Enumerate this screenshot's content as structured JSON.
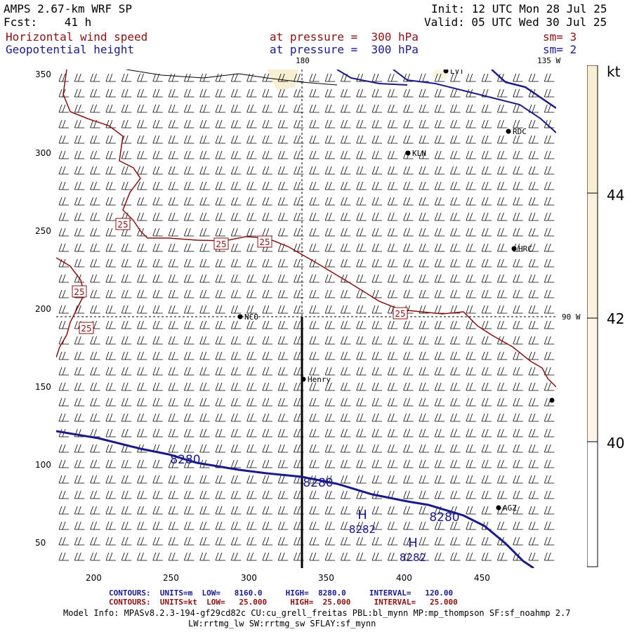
{
  "header": {
    "model": "AMPS 2.67-km WRF SP",
    "forecast": "Fcst:    41 h",
    "init": "Init: 12 UTC Mon 28 Jul 25",
    "valid": "Valid: 05 UTC Wed 30 Jul 25",
    "field1": "Horizontal wind speed",
    "field2": "Geopotential height",
    "level1": "at pressure =  300 hPa",
    "level2": "at pressure =  300 hPa",
    "sm1": "sm= 3",
    "sm2": "sm= 2"
  },
  "map": {
    "meridian_180": "180",
    "meridian_135w": "135 W",
    "parallel_90w": "90 W",
    "x_ticks": [
      "200",
      "250",
      "300",
      "350",
      "400",
      "450"
    ],
    "y_ticks": [
      "350",
      "300",
      "250",
      "200",
      "150",
      "100",
      "50"
    ],
    "stations": [
      "LVT",
      "RDC",
      "KLN",
      "HRC",
      "NCO",
      "Henry",
      "AGZ"
    ],
    "wind_labels": [
      "25",
      "25",
      "25",
      "25",
      "25",
      "25"
    ],
    "height_labels": [
      "8280",
      "8280",
      "8280"
    ],
    "highs": [
      {
        "label": "H",
        "value": "8282"
      },
      {
        "label": "H",
        "value": "8282"
      }
    ],
    "colors": {
      "wind_contour": "#8b1010",
      "height_contour": "#1a1a8c",
      "shading": "#f7efd2"
    }
  },
  "colorbar": {
    "unit": "kt",
    "labels": [
      "44",
      "42",
      "40"
    ],
    "colors": [
      "#f7efd2",
      "#fbf5e0",
      "#ffffff"
    ]
  },
  "footer": {
    "blue_contours": "CONTOURS:  UNITS=m  LOW=   8160.0     HIGH=  8280.0     INTERVAL=   120.00",
    "red_contours": "CONTOURS:  UNITS=kt  LOW=   25.000     HIGH=  25.000     INTERVAL=   25.000",
    "model_info1": "Model Info: MPASv8.2.3-194-gf29cd82c CU:cu_grell_freitas PBL:bl_mynn MP:mp_thompson SF:sf_noahmp 2.7",
    "model_info2": "LW:rrtmg_lw SW:rrtmg_sw SFLAY:sf_mynn"
  }
}
